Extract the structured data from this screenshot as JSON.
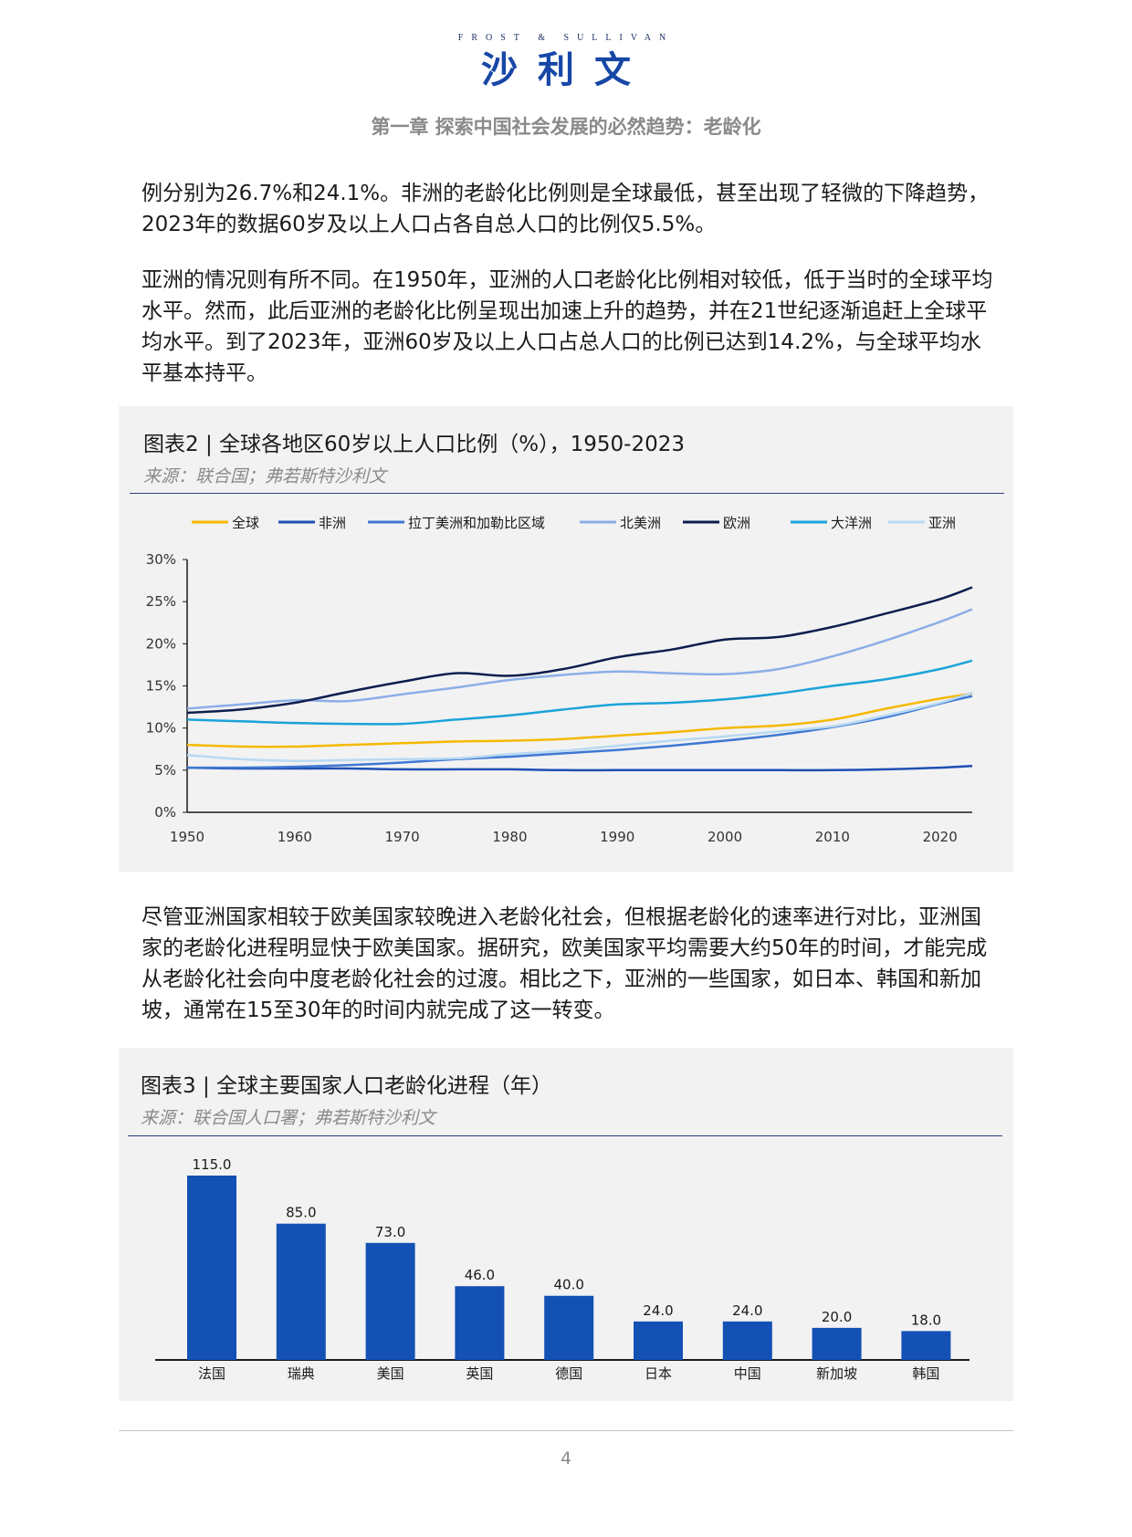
{
  "header": {
    "logo_en": "FROST & SULLIVAN",
    "logo_cn": "沙利文",
    "chapter": "第一章 探索中国社会发展的必然趋势：老龄化"
  },
  "paragraphs": {
    "p1": "例分别为26.7%和24.1%。非洲的老龄化比例则是全球最低，甚至出现了轻微的下降趋势，2023年的数据60岁及以上人口占各自总人口的比例仅5.5%。",
    "p2": "亚洲的情况则有所不同。在1950年，亚洲的人口老龄化比例相对较低，低于当时的全球平均水平。然而，此后亚洲的老龄化比例呈现出加速上升的趋势，并在21世纪逐渐追赶上全球平均水平。到了2023年，亚洲60岁及以上人口占总人口的比例已达到14.2%，与全球平均水平基本持平。",
    "p3": "尽管亚洲国家相较于欧美国家较晚进入老龄化社会，但根据老龄化的速率进行对比，亚洲国家的老龄化进程明显快于欧美国家。据研究，欧美国家平均需要大约50年的时间，才能完成从老龄化社会向中度老龄化社会的过渡。相比之下，亚洲的一些国家，如日本、韩国和新加坡，通常在15至30年的时间内就完成了这一转变。"
  },
  "figure2": {
    "title": "图表2 | 全球各地区60岁以上人口比例（%），1950-2023",
    "source": "来源：联合国；弗若斯特沙利文"
  },
  "figure3": {
    "title": "图表3 | 全球主要国家人口老龄化进程（年）",
    "source": "来源：联合国人口署；弗若斯特沙利文"
  },
  "chart_data": [
    {
      "type": "line",
      "title": "图表2 | 全球各地区60岁以上人口比例（%），1950-2023",
      "xlim": [
        1950,
        2023
      ],
      "ylim": [
        0,
        30
      ],
      "y_unit": "%",
      "x_ticks": [
        1950,
        1960,
        1970,
        1980,
        1990,
        2000,
        2010,
        2020
      ],
      "y_ticks": [
        "0%",
        "5%",
        "10%",
        "15%",
        "20%",
        "25%",
        "30%"
      ],
      "grid": false,
      "legend_position": "top",
      "x": [
        1950,
        1955,
        1960,
        1965,
        1970,
        1975,
        1980,
        1985,
        1990,
        1995,
        2000,
        2005,
        2010,
        2015,
        2020,
        2023
      ],
      "series": [
        {
          "name": "全球",
          "color": "#f5b800",
          "values": [
            8.0,
            7.8,
            7.8,
            8.0,
            8.2,
            8.4,
            8.5,
            8.7,
            9.1,
            9.5,
            10.0,
            10.3,
            11.0,
            12.3,
            13.5,
            14.1
          ]
        },
        {
          "name": "非洲",
          "color": "#1f4fb4",
          "values": [
            5.3,
            5.2,
            5.2,
            5.2,
            5.1,
            5.1,
            5.1,
            5.0,
            5.0,
            5.0,
            5.0,
            5.0,
            5.0,
            5.1,
            5.3,
            5.5
          ]
        },
        {
          "name": "拉丁美洲和加勒比区域",
          "color": "#3f78d4",
          "values": [
            5.3,
            5.3,
            5.4,
            5.6,
            5.9,
            6.3,
            6.6,
            7.0,
            7.4,
            7.9,
            8.5,
            9.2,
            10.1,
            11.3,
            12.9,
            13.8
          ]
        },
        {
          "name": "北美洲",
          "color": "#8caee8",
          "values": [
            12.3,
            12.8,
            13.3,
            13.2,
            14.0,
            14.8,
            15.7,
            16.3,
            16.7,
            16.5,
            16.4,
            17.0,
            18.5,
            20.4,
            22.6,
            24.1
          ]
        },
        {
          "name": "欧洲",
          "color": "#0d1e4d",
          "values": [
            11.8,
            12.2,
            13.0,
            14.3,
            15.5,
            16.5,
            16.2,
            17.0,
            18.4,
            19.3,
            20.5,
            20.8,
            22.0,
            23.6,
            25.3,
            26.7
          ]
        },
        {
          "name": "大洋洲",
          "color": "#1aa3d9",
          "values": [
            11.0,
            10.8,
            10.6,
            10.5,
            10.5,
            11.0,
            11.5,
            12.2,
            12.8,
            13.0,
            13.4,
            14.1,
            15.0,
            15.8,
            17.0,
            18.0
          ]
        },
        {
          "name": "亚洲",
          "color": "#b8d9f3",
          "values": [
            6.8,
            6.3,
            6.1,
            6.2,
            6.3,
            6.4,
            6.9,
            7.3,
            7.9,
            8.5,
            9.0,
            9.6,
            10.2,
            11.5,
            13.0,
            14.2
          ]
        }
      ]
    },
    {
      "type": "bar",
      "title": "图表3 | 全球主要国家人口老龄化进程（年）",
      "categories": [
        "法国",
        "瑞典",
        "美国",
        "英国",
        "德国",
        "日本",
        "中国",
        "新加坡",
        "韩国"
      ],
      "values": [
        115.0,
        85.0,
        73.0,
        46.0,
        40.0,
        24.0,
        24.0,
        20.0,
        18.0
      ],
      "value_labels": [
        "115.0",
        "85.0",
        "73.0",
        "46.0",
        "40.0",
        "24.0",
        "24.0",
        "20.0",
        "18.0"
      ],
      "color": "#1351b4",
      "ylim": [
        0,
        115
      ]
    }
  ],
  "footer": {
    "page_number": "4"
  }
}
